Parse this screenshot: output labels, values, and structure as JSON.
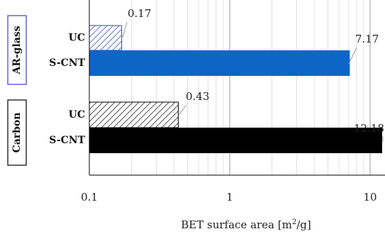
{
  "chart_data": {
    "type": "bar",
    "orientation": "horizontal",
    "x_scale": "log",
    "xlim": [
      0.1,
      12.5
    ],
    "xlabel": "BET surface area [m²/g]",
    "xlabel_text": "BET surface area [m",
    "xlabel_sup": "2",
    "xlabel_tail": "/g]",
    "x_ticks": [
      {
        "value": 0.1,
        "label": "0.1"
      },
      {
        "value": 1,
        "label": "1"
      },
      {
        "value": 10,
        "label": "10"
      }
    ],
    "grid": "minor-and-major vertical",
    "groups": [
      {
        "name": "AR-glass",
        "frame_color": "#3b3bd6",
        "bars": [
          {
            "category": "UC",
            "value": 0.17,
            "label": "0.17",
            "style": "hatched",
            "color": "#2a45c8"
          },
          {
            "category": "S-CNT",
            "value": 7.17,
            "label": "7.17",
            "style": "solid",
            "color": "#0e65c8"
          }
        ]
      },
      {
        "name": "Carbon",
        "frame_color": "#000000",
        "bars": [
          {
            "category": "UC",
            "value": 0.43,
            "label": "0.43",
            "style": "hatched",
            "color": "#000000"
          },
          {
            "category": "S-CNT",
            "value": 12.18,
            "label": "12.18",
            "style": "solid",
            "color": "#000000"
          }
        ]
      }
    ]
  }
}
